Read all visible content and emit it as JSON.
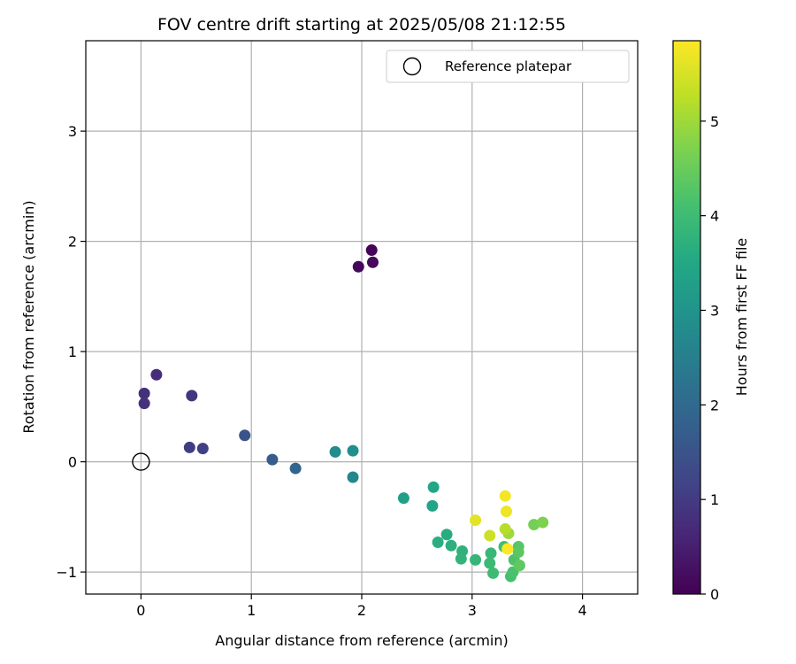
{
  "chart_data": {
    "type": "scatter",
    "title": "FOV centre drift starting at 2025/05/08 21:12:55",
    "xlabel": "Angular distance from reference (arcmin)",
    "ylabel": "Rotation from reference (arcmin)",
    "xlim": [
      -0.5,
      4.5
    ],
    "ylim": [
      -1.2,
      3.82
    ],
    "x_ticks": [
      0,
      1,
      2,
      3,
      4
    ],
    "y_ticks": [
      -1,
      0,
      1,
      2,
      3
    ],
    "grid": true,
    "legend": {
      "placement": "top-right",
      "entries": [
        {
          "label": "Reference platepar",
          "marker": "open-circle"
        }
      ]
    },
    "reference_point": {
      "x": 0.0,
      "y": 0.0
    },
    "colorbar": {
      "label": "Hours from first FF file",
      "colormap": "viridis",
      "range": [
        0,
        5.85
      ],
      "ticks": [
        0,
        1,
        2,
        3,
        4,
        5
      ]
    },
    "points": [
      {
        "x": 2.09,
        "y": 1.92,
        "c": 0.05
      },
      {
        "x": 1.97,
        "y": 1.77,
        "c": 0.1
      },
      {
        "x": 2.1,
        "y": 1.81,
        "c": 0.15
      },
      {
        "x": 0.14,
        "y": 0.79,
        "c": 0.75
      },
      {
        "x": 0.03,
        "y": 0.62,
        "c": 0.8
      },
      {
        "x": 0.03,
        "y": 0.53,
        "c": 0.85
      },
      {
        "x": 0.46,
        "y": 0.6,
        "c": 0.9
      },
      {
        "x": 0.44,
        "y": 0.13,
        "c": 1.05
      },
      {
        "x": 0.56,
        "y": 0.12,
        "c": 1.1
      },
      {
        "x": 0.94,
        "y": 0.24,
        "c": 1.5
      },
      {
        "x": 1.19,
        "y": 0.02,
        "c": 1.7
      },
      {
        "x": 1.4,
        "y": -0.06,
        "c": 1.9
      },
      {
        "x": 1.76,
        "y": 0.09,
        "c": 2.8
      },
      {
        "x": 1.92,
        "y": 0.1,
        "c": 2.9
      },
      {
        "x": 1.92,
        "y": -0.14,
        "c": 2.7
      },
      {
        "x": 2.38,
        "y": -0.33,
        "c": 3.3
      },
      {
        "x": 2.65,
        "y": -0.23,
        "c": 3.45
      },
      {
        "x": 2.64,
        "y": -0.4,
        "c": 3.4
      },
      {
        "x": 2.77,
        "y": -0.66,
        "c": 3.6
      },
      {
        "x": 2.69,
        "y": -0.73,
        "c": 3.65
      },
      {
        "x": 2.81,
        "y": -0.76,
        "c": 3.7
      },
      {
        "x": 2.91,
        "y": -0.81,
        "c": 3.75
      },
      {
        "x": 2.9,
        "y": -0.88,
        "c": 3.8
      },
      {
        "x": 3.03,
        "y": -0.89,
        "c": 3.85
      },
      {
        "x": 3.17,
        "y": -0.83,
        "c": 3.9
      },
      {
        "x": 3.16,
        "y": -0.92,
        "c": 3.95
      },
      {
        "x": 3.19,
        "y": -1.01,
        "c": 4.0
      },
      {
        "x": 3.29,
        "y": -0.77,
        "c": 4.05
      },
      {
        "x": 3.35,
        "y": -1.04,
        "c": 4.1
      },
      {
        "x": 3.37,
        "y": -1.0,
        "c": 4.15
      },
      {
        "x": 3.38,
        "y": -0.89,
        "c": 4.2
      },
      {
        "x": 3.42,
        "y": -0.77,
        "c": 4.3
      },
      {
        "x": 3.42,
        "y": -0.82,
        "c": 4.35
      },
      {
        "x": 3.43,
        "y": -0.94,
        "c": 4.4
      },
      {
        "x": 3.56,
        "y": -0.57,
        "c": 4.6
      },
      {
        "x": 3.64,
        "y": -0.55,
        "c": 4.7
      },
      {
        "x": 3.33,
        "y": -0.65,
        "c": 5.0
      },
      {
        "x": 3.3,
        "y": -0.61,
        "c": 5.2
      },
      {
        "x": 3.16,
        "y": -0.67,
        "c": 5.4
      },
      {
        "x": 3.03,
        "y": -0.53,
        "c": 5.6
      },
      {
        "x": 3.31,
        "y": -0.45,
        "c": 5.7
      },
      {
        "x": 3.3,
        "y": -0.31,
        "c": 5.75
      },
      {
        "x": 3.32,
        "y": -0.79,
        "c": 5.85
      }
    ]
  }
}
